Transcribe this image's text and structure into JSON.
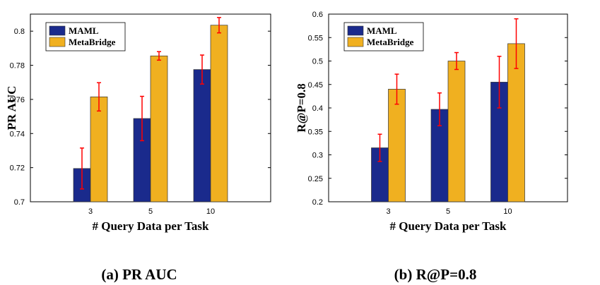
{
  "colors": {
    "maml": "#1a2a8c",
    "metabridge": "#f0b020",
    "error": "#ff0000"
  },
  "chart_data": [
    {
      "type": "bar",
      "categories": [
        "3",
        "5",
        "10"
      ],
      "xlabel": "# Query Data per Task",
      "ylabel": "PR AUC",
      "ylim": [
        0.7,
        0.81
      ],
      "yticks": [
        0.7,
        0.72,
        0.74,
        0.76,
        0.78,
        0.8
      ],
      "ytick_labels": [
        "0.7",
        "0.72",
        "0.74",
        "0.76",
        "0.78",
        "0.8"
      ],
      "legend": [
        "MAML",
        "MetaBridge"
      ],
      "legend_position": "top-left",
      "series": [
        {
          "name": "MAML",
          "values": [
            0.7195,
            0.7488,
            0.7775
          ],
          "errors": [
            0.012,
            0.013,
            0.0085
          ]
        },
        {
          "name": "MetaBridge",
          "values": [
            0.7615,
            0.7855,
            0.8035
          ],
          "errors": [
            0.0083,
            0.0025,
            0.0045
          ]
        }
      ],
      "caption": "(a) PR AUC"
    },
    {
      "type": "bar",
      "categories": [
        "3",
        "5",
        "10"
      ],
      "xlabel": "# Query Data per Task",
      "ylabel": "R@P=0.8",
      "ylim": [
        0.2,
        0.6
      ],
      "yticks": [
        0.2,
        0.25,
        0.3,
        0.35,
        0.4,
        0.45,
        0.5,
        0.55,
        0.6
      ],
      "ytick_labels": [
        "0.2",
        "0.25",
        "0.3",
        "0.35",
        "0.4",
        "0.45",
        "0.5",
        "0.55",
        "0.6"
      ],
      "legend": [
        "MAML",
        "MetaBridge"
      ],
      "legend_position": "top-left",
      "series": [
        {
          "name": "MAML",
          "values": [
            0.315,
            0.397,
            0.455
          ],
          "errors": [
            0.029,
            0.035,
            0.055
          ]
        },
        {
          "name": "MetaBridge",
          "values": [
            0.44,
            0.5,
            0.537
          ],
          "errors": [
            0.032,
            0.018,
            0.053
          ]
        }
      ],
      "caption": "(b) R@P=0.8"
    }
  ]
}
